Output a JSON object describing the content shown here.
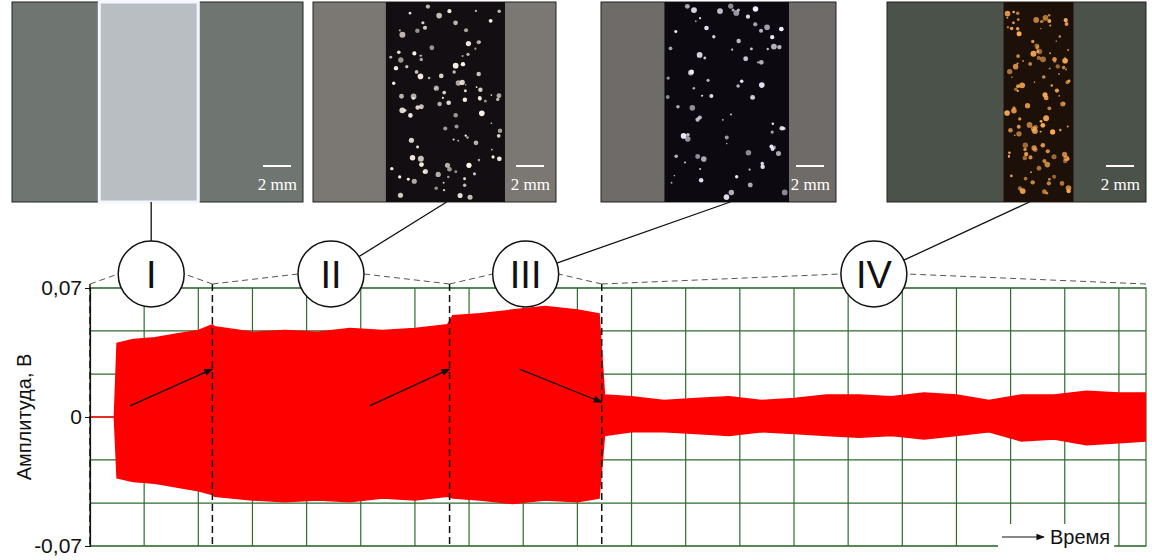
{
  "chart_data": {
    "type": "area",
    "y_label": "Амплитуда, В",
    "x_label": "Время",
    "xlim": [
      0,
      19.5
    ],
    "ylim": [
      -0.07,
      0.07
    ],
    "yticks": [
      {
        "value": 0.07,
        "label": "0,07"
      },
      0,
      {
        "value": -0.07,
        "label": "-0,07"
      }
    ],
    "tick_labels": "y",
    "grid": true,
    "grid_lines": {
      "x": [
        1,
        2,
        3,
        4,
        5,
        6,
        7,
        8,
        9,
        10,
        11,
        12,
        13,
        14,
        15,
        16,
        17,
        18,
        19
      ],
      "y": [
        0.0467,
        0.0233,
        -0.0233,
        -0.0467
      ]
    },
    "stages": [
      {
        "label": "I",
        "start": 0,
        "end": 2.26
      },
      {
        "label": "II",
        "start": 2.26,
        "end": 6.64
      },
      {
        "label": "III",
        "start": 6.64,
        "end": 9.45
      },
      {
        "label": "IV",
        "start": 9.45,
        "end": 19.5
      }
    ],
    "envelope": {
      "color": "#ff0000",
      "x": [
        0,
        0.45,
        0.5,
        0.8,
        1.2,
        1.6,
        2.0,
        2.26,
        2.3,
        3.0,
        3.6,
        4.2,
        4.8,
        5.4,
        6.0,
        6.6,
        6.7,
        7.2,
        7.8,
        8.4,
        9.0,
        9.4,
        9.5,
        10.0,
        10.6,
        11.2,
        11.8,
        12.4,
        13.0,
        13.6,
        14.2,
        14.8,
        15.4,
        16.0,
        16.6,
        17.2,
        17.8,
        18.4,
        19.0,
        19.5
      ],
      "upper": [
        0,
        0,
        0.04,
        0.042,
        0.043,
        0.045,
        0.047,
        0.05,
        0.049,
        0.046,
        0.047,
        0.046,
        0.048,
        0.047,
        0.048,
        0.05,
        0.055,
        0.056,
        0.058,
        0.06,
        0.058,
        0.056,
        0.012,
        0.011,
        0.009,
        0.01,
        0.011,
        0.009,
        0.01,
        0.012,
        0.012,
        0.011,
        0.013,
        0.012,
        0.009,
        0.012,
        0.012,
        0.014,
        0.013,
        0.013
      ],
      "lower": [
        0,
        0,
        -0.033,
        -0.035,
        -0.036,
        -0.038,
        -0.04,
        -0.042,
        -0.043,
        -0.045,
        -0.046,
        -0.045,
        -0.046,
        -0.044,
        -0.045,
        -0.043,
        -0.044,
        -0.045,
        -0.047,
        -0.045,
        -0.046,
        -0.044,
        -0.01,
        -0.008,
        -0.008,
        -0.009,
        -0.01,
        -0.008,
        -0.009,
        -0.01,
        -0.011,
        -0.01,
        -0.012,
        -0.01,
        -0.008,
        -0.013,
        -0.012,
        -0.015,
        -0.014,
        -0.013
      ]
    }
  },
  "photos": [
    {
      "scale_label": "2 mm"
    },
    {
      "scale_label": "2 mm"
    },
    {
      "scale_label": "2 mm"
    },
    {
      "scale_label": "2 mm"
    }
  ]
}
